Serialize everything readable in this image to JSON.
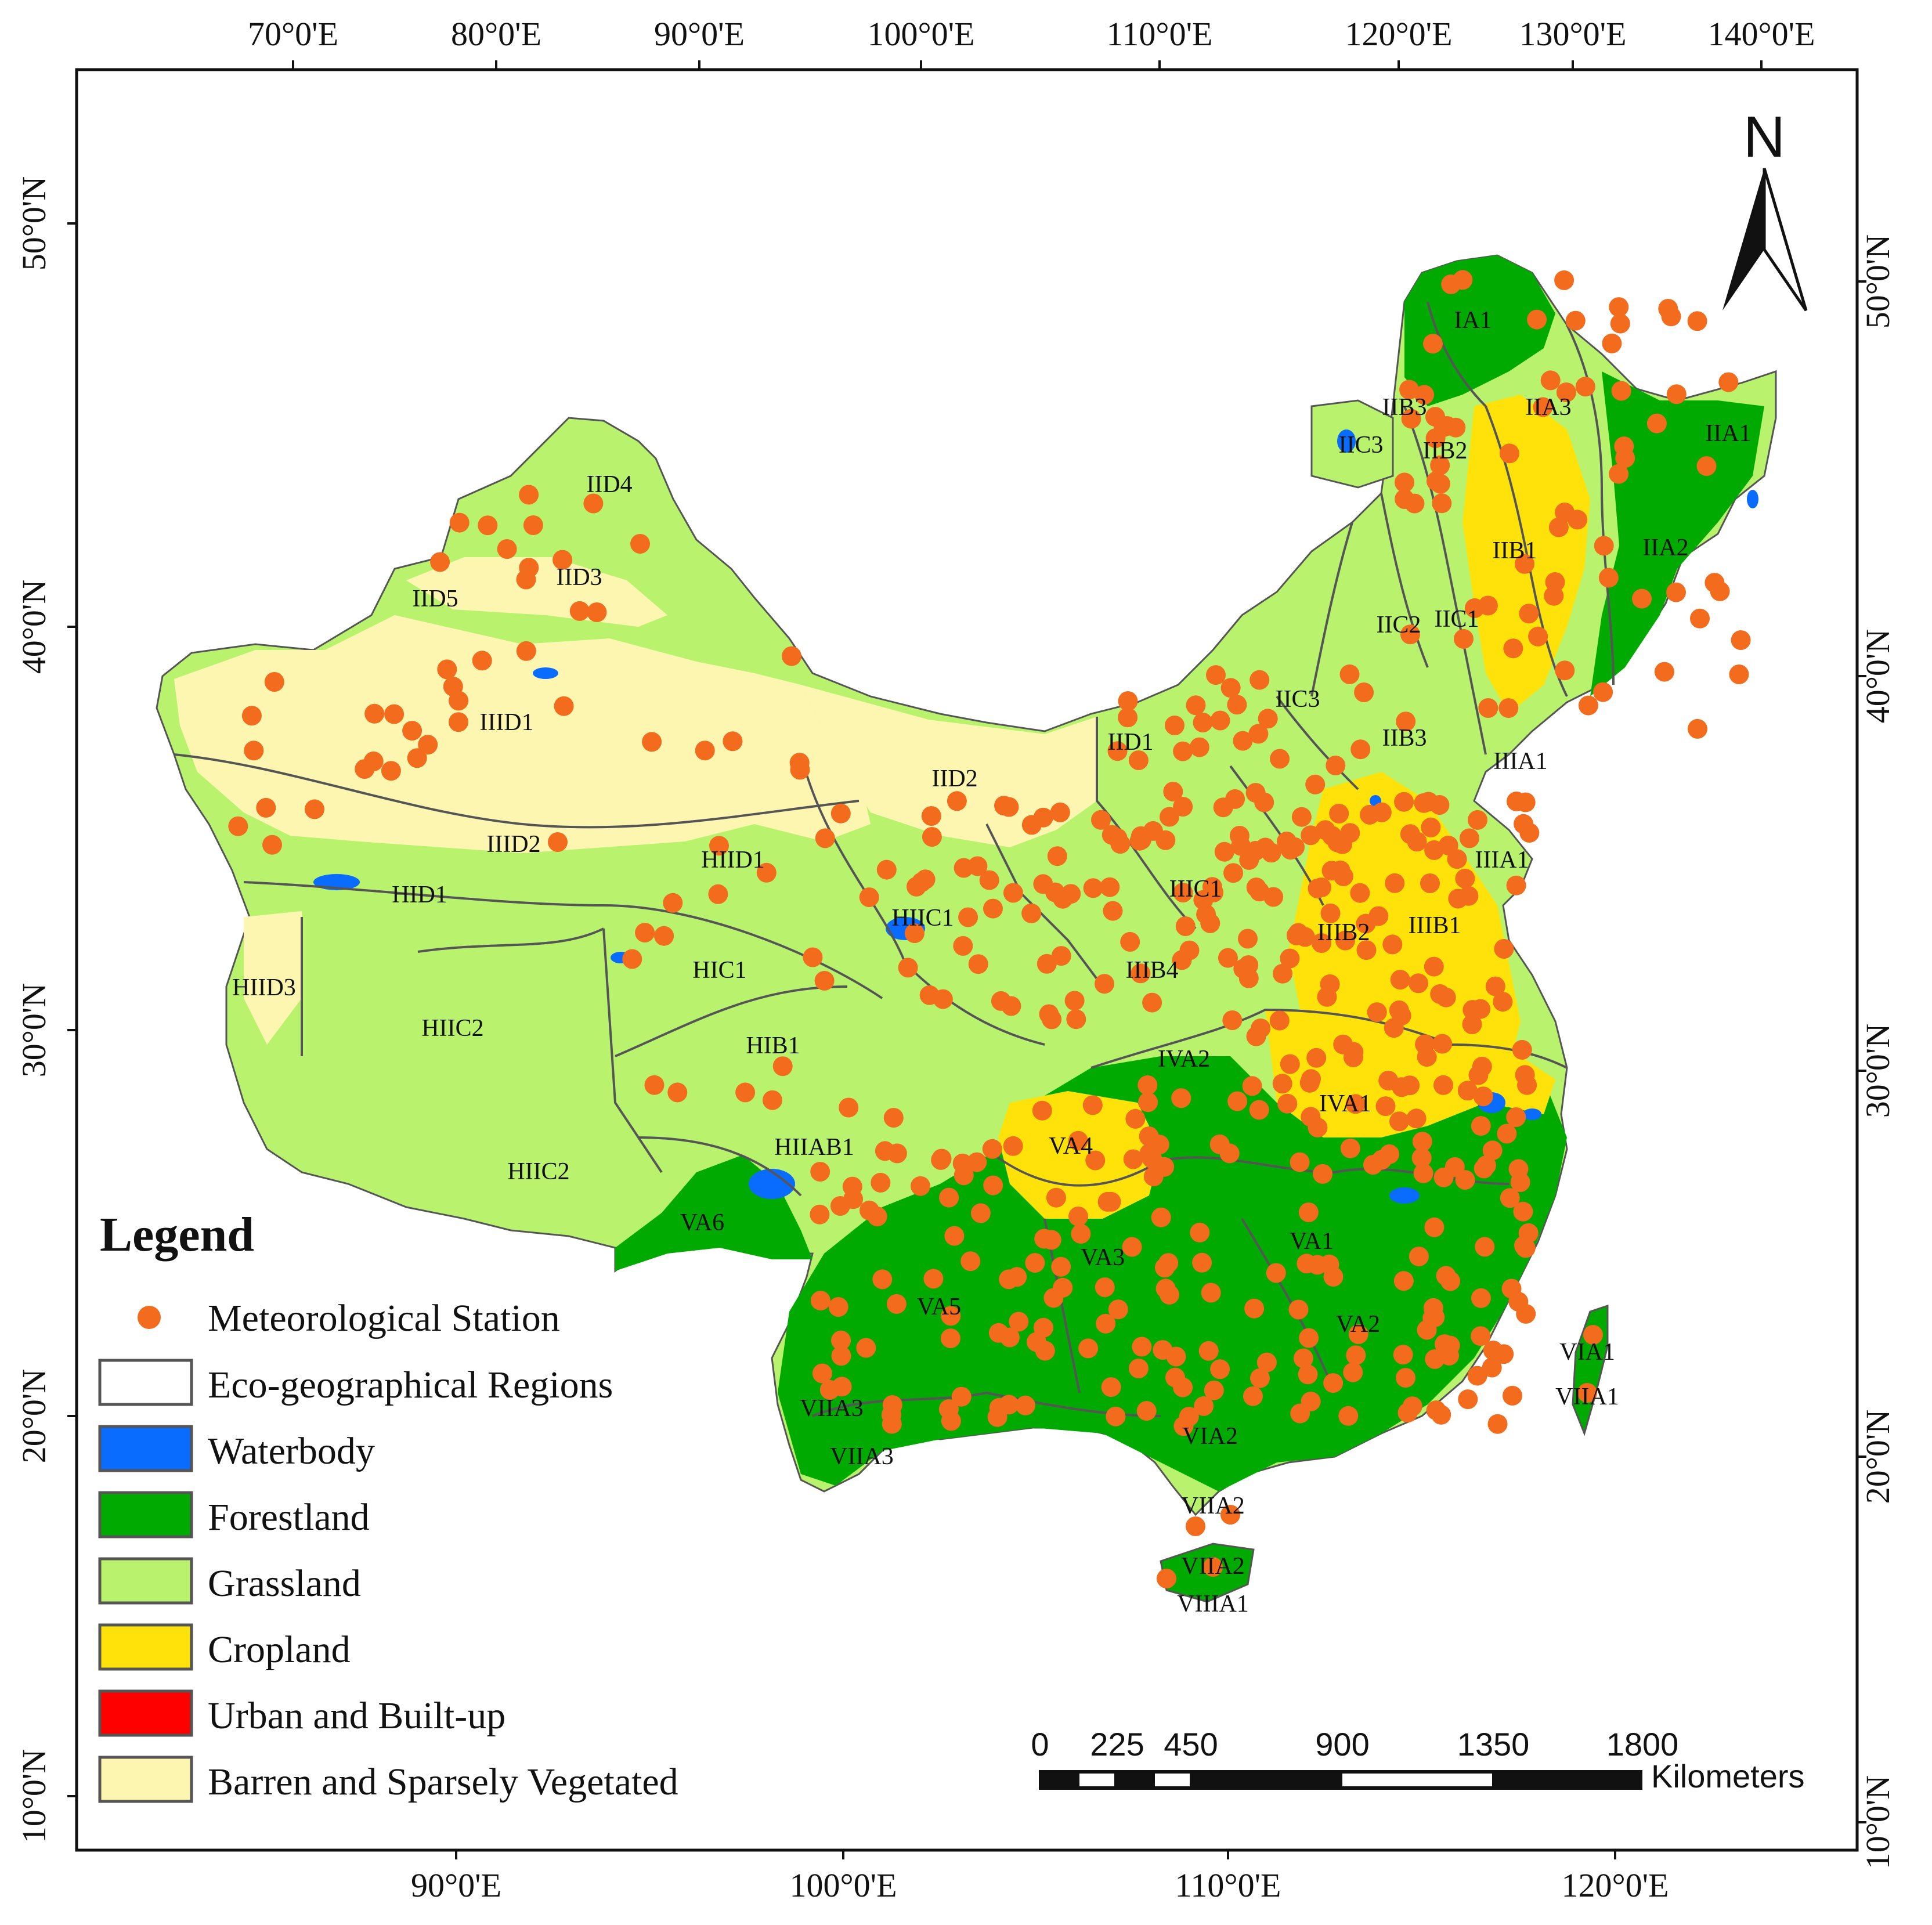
{
  "map": {
    "top_lon_labels": [
      "70°0'E",
      "80°0'E",
      "90°0'E",
      "100°0'E",
      "110°0'E",
      "120°0'E",
      "130°0'E",
      "140°0'E"
    ],
    "bottom_lon_labels": [
      "90°0'E",
      "100°0'E",
      "110°0'E",
      "120°0'E"
    ],
    "left_lat_labels": [
      "50°0'N",
      "40°0'N",
      "30°0'N",
      "20°0'N",
      "10°0'N"
    ],
    "right_lat_labels": [
      "50°0'N",
      "40°0'N",
      "30°0'N",
      "20°0'N",
      "10°0'N"
    ],
    "north_arrow": "N",
    "colors": {
      "waterbody": "#0a6cff",
      "forestland": "#00aa00",
      "grassland": "#b9f36e",
      "cropland": "#ffe20a",
      "urban": "#ff0000",
      "barren": "#fdf6b0",
      "station": "#f36b1c",
      "boundary": "#555555"
    },
    "regions": [
      "IA1",
      "IIA3",
      "IIA1",
      "IIA2",
      "IIB3",
      "IIB2",
      "IIC3",
      "IIB1",
      "IIC1",
      "IIC2",
      "IIC3",
      "IIB3",
      "IIIA1",
      "IIIA1",
      "IID4",
      "IID3",
      "IID5",
      "IIID1",
      "IID2",
      "IID1",
      "IIID2",
      "HIID1",
      "HID1",
      "HIIC1",
      "IIIC1",
      "IIIB2",
      "IIIB1",
      "HIC1",
      "IIIB4",
      "HIID3",
      "HIIC2",
      "HIB1",
      "IVA2",
      "IVA1",
      "HIIAB1",
      "VA4",
      "HIIC2",
      "VA6",
      "VA3",
      "VA1",
      "VA5",
      "VA2",
      "VIA1",
      "VIIA1",
      "VIIA3",
      "VIIA3",
      "VIA2",
      "VIIA2",
      "VIIA2",
      "VIIIA1"
    ]
  },
  "legend": {
    "title": "Legend",
    "items": [
      {
        "label": "Meteorological Station",
        "symbol": "station"
      },
      {
        "label": "Eco-geographical Regions",
        "symbol": "boundary"
      },
      {
        "label": "Waterbody",
        "symbol": "waterbody"
      },
      {
        "label": "Forestland",
        "symbol": "forestland"
      },
      {
        "label": "Grassland",
        "symbol": "grassland"
      },
      {
        "label": "Cropland",
        "symbol": "cropland"
      },
      {
        "label": "Urban and Built-up",
        "symbol": "urban"
      },
      {
        "label": "Barren and Sparsely Vegetated",
        "symbol": "barren"
      }
    ]
  },
  "scale_bar": {
    "labels": [
      "0",
      "225",
      "450",
      "900",
      "1350",
      "1800"
    ],
    "unit": "Kilometers"
  }
}
